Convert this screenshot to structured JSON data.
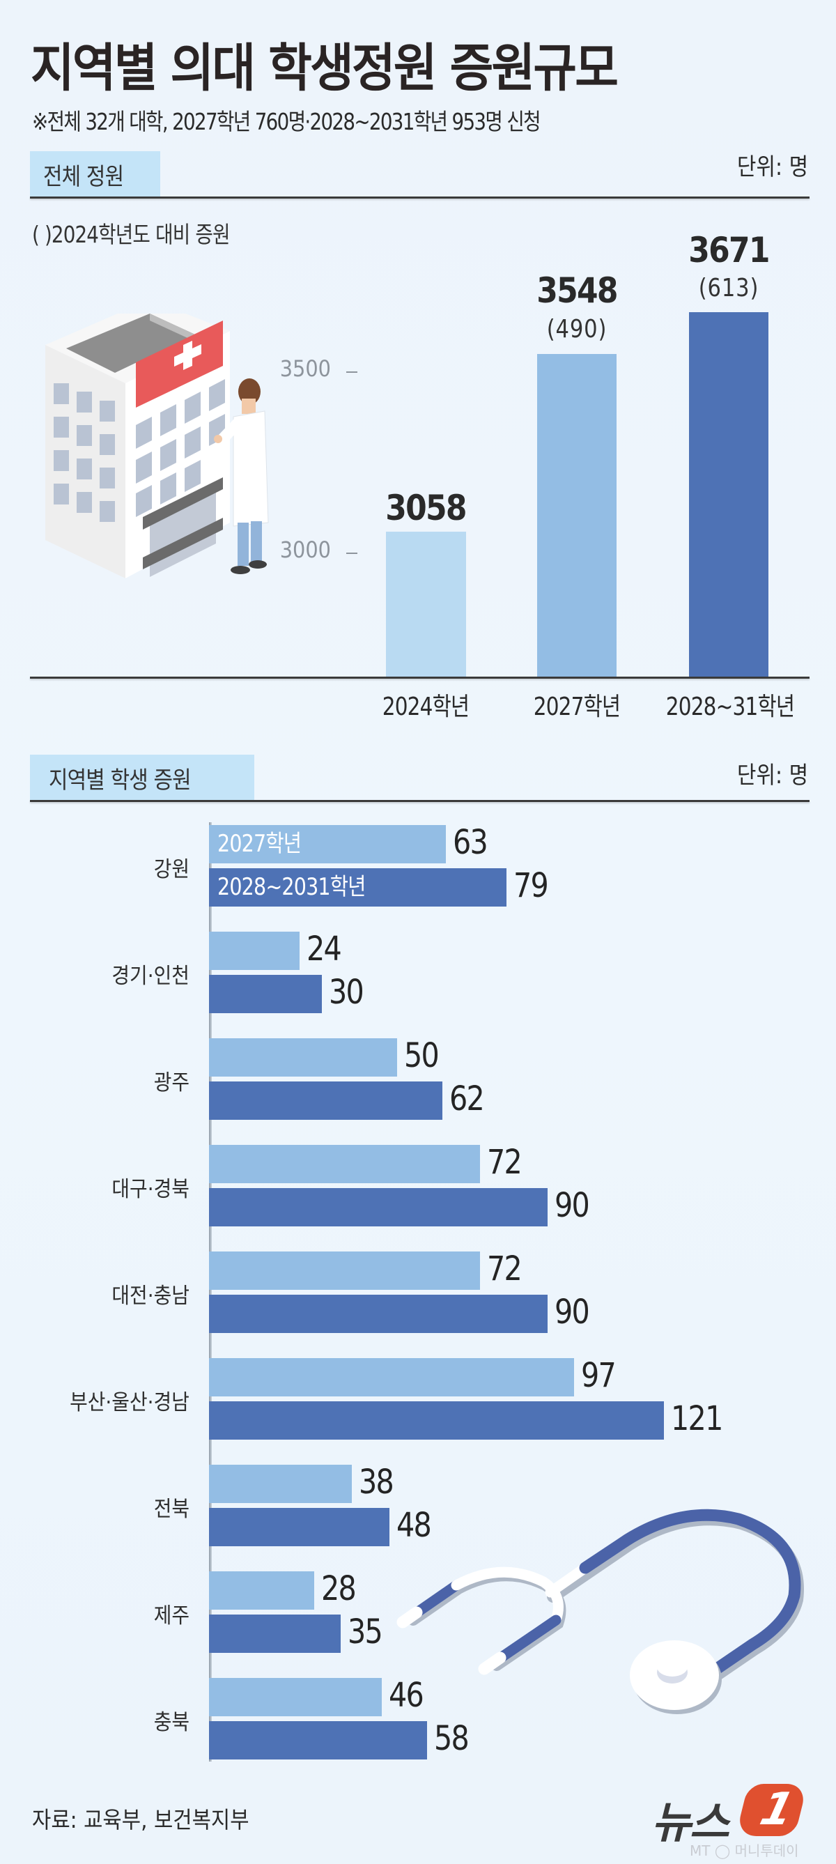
{
  "header": {
    "title": "지역별 의대 학생정원 증원규모",
    "subtitle": "※전체 32개 대학, 2027학년 760명·2028~2031학년 953명 신청"
  },
  "section1": {
    "label": "전체 정원",
    "unit": "단위: 명",
    "note": "( )2024학년도 대비 증원",
    "ticks": [
      "3500",
      "3000"
    ]
  },
  "section2": {
    "label": "지역별 학생 증원",
    "unit": "단위: 명",
    "series_labels": [
      "2027학년",
      "2028~2031학년"
    ]
  },
  "colors": {
    "bar_2024": "#B9DAF2",
    "bar_2027": "#93BDE4",
    "bar_2028_31": "#4E72B5",
    "section_box": "#C4E4F8",
    "background": "#EEF6FD",
    "logo_red": "#E0502F"
  },
  "chart_data": [
    {
      "type": "bar",
      "title": "전체 정원",
      "categories": [
        "2024학년",
        "2027학년",
        "2028~31학년"
      ],
      "values": [
        3058,
        3548,
        3671
      ],
      "value_labels": [
        "3058",
        "3548",
        "3671"
      ],
      "increase_vs_2024": [
        null,
        490,
        613
      ],
      "increase_labels": [
        "",
        "(490)",
        "(613)"
      ],
      "ylabel": "",
      "xlabel": "",
      "unit": "명",
      "yticks": [
        3000,
        3500
      ],
      "ylim": [
        2600,
        3700
      ],
      "annotation": "( )2024학년도 대비 증원"
    },
    {
      "type": "bar",
      "orientation": "horizontal",
      "title": "지역별 학생 증원",
      "unit": "명",
      "categories": [
        "강원",
        "경기·인천",
        "광주",
        "대구·경북",
        "대전·충남",
        "부산·울산·경남",
        "전북",
        "제주",
        "충북"
      ],
      "series": [
        {
          "name": "2027학년",
          "values": [
            63,
            24,
            50,
            72,
            72,
            97,
            38,
            28,
            46
          ]
        },
        {
          "name": "2028~2031학년",
          "values": [
            79,
            30,
            62,
            90,
            90,
            121,
            48,
            35,
            58
          ]
        }
      ],
      "legend_position": "inside-first-bars"
    }
  ],
  "footer": {
    "source": "자료: 교육부, 보건복지부",
    "logo_text": "뉴스",
    "logo_num": "1",
    "logo_sub": "MT ◯ 머니투데이"
  }
}
